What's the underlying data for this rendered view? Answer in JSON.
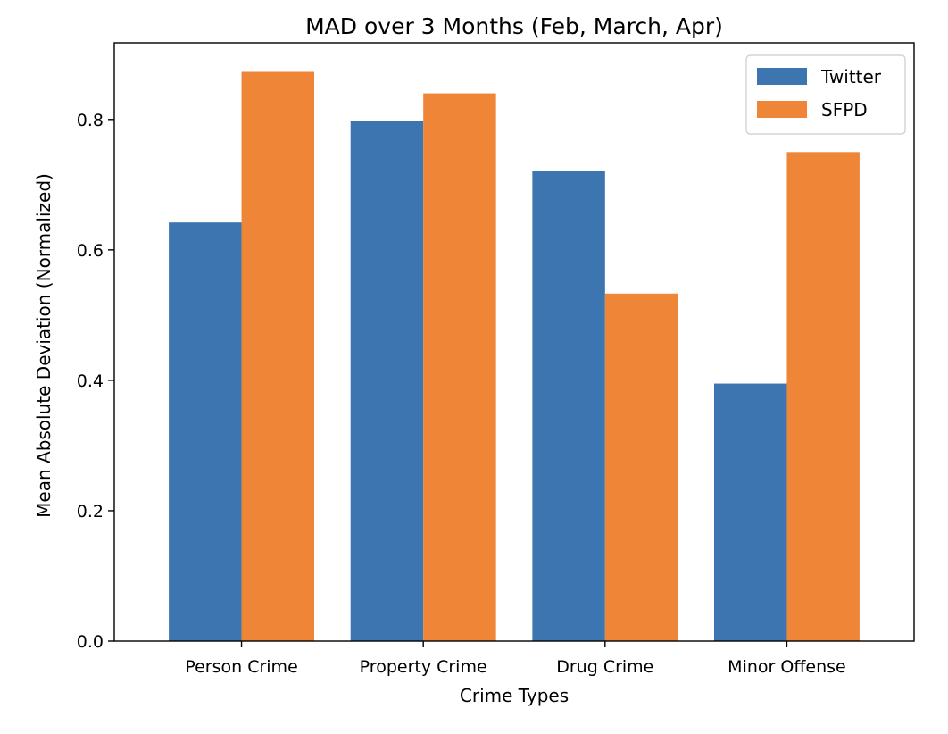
{
  "chart_data": {
    "type": "bar",
    "title": "MAD over 3 Months (Feb, March, Apr)",
    "xlabel": "Crime Types",
    "ylabel": "Mean Absolute Deviation (Normalized)",
    "categories": [
      "Person Crime",
      "Property Crime",
      "Drug Crime",
      "Minor Offense"
    ],
    "series": [
      {
        "name": "Twitter",
        "values": [
          0.642,
          0.797,
          0.721,
          0.395
        ],
        "color": "#3c75af"
      },
      {
        "name": "SFPD",
        "values": [
          0.873,
          0.84,
          0.533,
          0.75
        ],
        "color": "#ef8536"
      }
    ],
    "ylim": [
      0,
      0.9175
    ],
    "yticks": [
      0.0,
      0.2,
      0.4,
      0.6,
      0.8
    ],
    "ytick_labels": [
      "0.0",
      "0.2",
      "0.4",
      "0.6",
      "0.8"
    ],
    "grid": false,
    "legend_position": "top-right"
  }
}
